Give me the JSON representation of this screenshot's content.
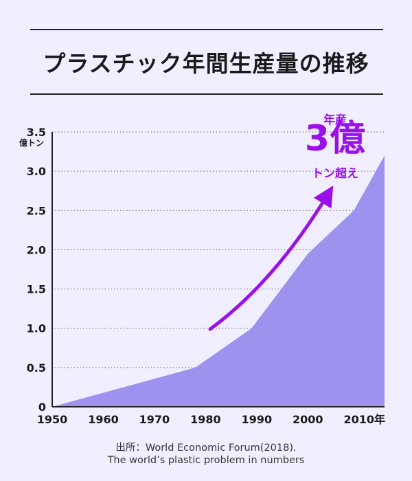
{
  "title": "プラスチック年間生産量の推移",
  "chart_data": {
    "type": "area",
    "title": "プラスチック年間生産量の推移",
    "ylabel": "億トン",
    "xlabel": "年",
    "ylim": [
      0,
      3.5
    ],
    "xlim": [
      1950,
      2015
    ],
    "x_ticks": [
      1950,
      1960,
      1970,
      1980,
      1990,
      2000,
      2010
    ],
    "x_tick_labels": [
      "1950",
      "1960",
      "1970",
      "1980",
      "1990",
      "2000",
      "2010年"
    ],
    "y_ticks": [
      0,
      0.5,
      1.0,
      1.5,
      2.0,
      2.5,
      3.0,
      3.5
    ],
    "y_tick_labels": [
      "0",
      "0.5",
      "1.0",
      "1.5",
      "2.0",
      "2.5",
      "3.0",
      "3.5"
    ],
    "grid": true,
    "x": [
      1950,
      1978,
      1989,
      2000,
      2009,
      2015
    ],
    "values": [
      0,
      0.5,
      1.0,
      1.95,
      2.5,
      3.2
    ],
    "color": "#9d93ee",
    "arrow_color": "#9b10e8",
    "annotation": {
      "top": "年産",
      "main": "3億",
      "bottom": "トン超え"
    }
  },
  "source": {
    "line1": "出所：World Economic Forum(2018).",
    "line2": "The world’s plastic problem in numbers"
  }
}
